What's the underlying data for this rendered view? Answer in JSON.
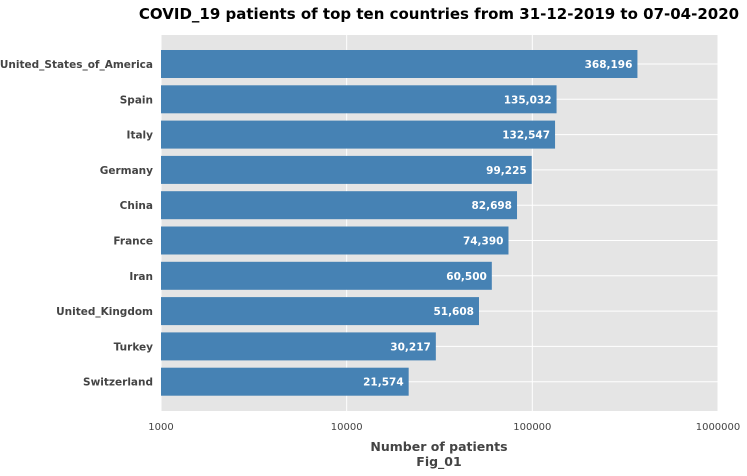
{
  "chart_data": {
    "type": "bar",
    "orientation": "horizontal",
    "title": "COVID_19 patients of top ten countries from 31-12-2019 to 07-04-2020",
    "xlabel": "Number of patients",
    "xlabel2": "Fig_01",
    "ylabel": "",
    "x_scale": "log",
    "xlim": [
      1000,
      1000000
    ],
    "x_ticks": [
      {
        "value": 1000,
        "label": "1000"
      },
      {
        "value": 10000,
        "label": "10000"
      },
      {
        "value": 100000,
        "label": "100000"
      },
      {
        "value": 1000000,
        "label": "1000000"
      }
    ],
    "grid": true,
    "legend": "none",
    "bar_color": "#4682B4",
    "plot_background": "#E5E5E5",
    "grid_color": "#FFFFFF",
    "categories": [
      "United_States_of_America",
      "Spain",
      "Italy",
      "Germany",
      "China",
      "France",
      "Iran",
      "United_Kingdom",
      "Turkey",
      "Switzerland"
    ],
    "values": [
      368196,
      135032,
      132547,
      99225,
      82698,
      74390,
      60500,
      51608,
      30217,
      21574
    ],
    "value_labels": [
      "368,196",
      "135,032",
      "132,547",
      "99,225",
      "82,698",
      "74,390",
      "60,500",
      "51,608",
      "30,217",
      "21,574"
    ]
  }
}
